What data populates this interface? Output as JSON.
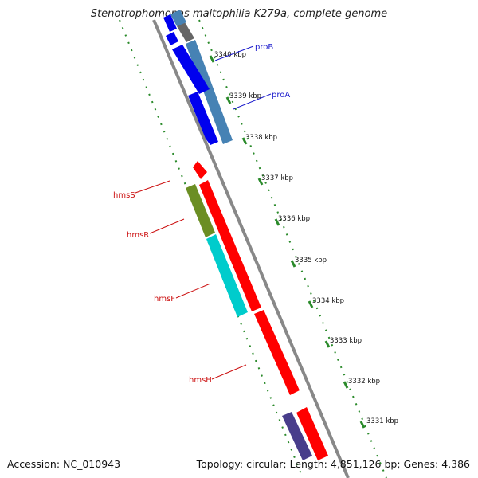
{
  "title": "Stenotrophomonas maltophilia K279a, complete genome",
  "footer": {
    "accession": "Accession: NC_010943",
    "summary": "Topology: circular; Length: 4,851,126 bp; Genes: 4,386"
  },
  "ticks": [
    "3340 kbp",
    "3339 kbp",
    "3338 kbp",
    "3337 kbp",
    "3336 kbp",
    "3335 kbp",
    "3334 kbp",
    "3333 kbp",
    "3332 kbp",
    "3331 kbp"
  ],
  "gene_labels": [
    {
      "text": "proB",
      "color": "#1a1acc"
    },
    {
      "text": "proA",
      "color": "#1a1acc"
    },
    {
      "text": "hmsS",
      "color": "#cc1111"
    },
    {
      "text": "hmsR",
      "color": "#cc1111"
    },
    {
      "text": "hmsF",
      "color": "#cc1111"
    },
    {
      "text": "hmsH",
      "color": "#cc1111"
    }
  ],
  "colors": {
    "backbone": "#888888",
    "dotted_track": "#2a8a2a",
    "blue_gene": "#0000ee",
    "steel_gene": "#4682b4",
    "red_gene": "#ff0000",
    "olive_gene": "#6b8e23",
    "cyan_gene": "#00cccc",
    "purple_gene": "#483d8b",
    "grey_gene": "#666666"
  }
}
